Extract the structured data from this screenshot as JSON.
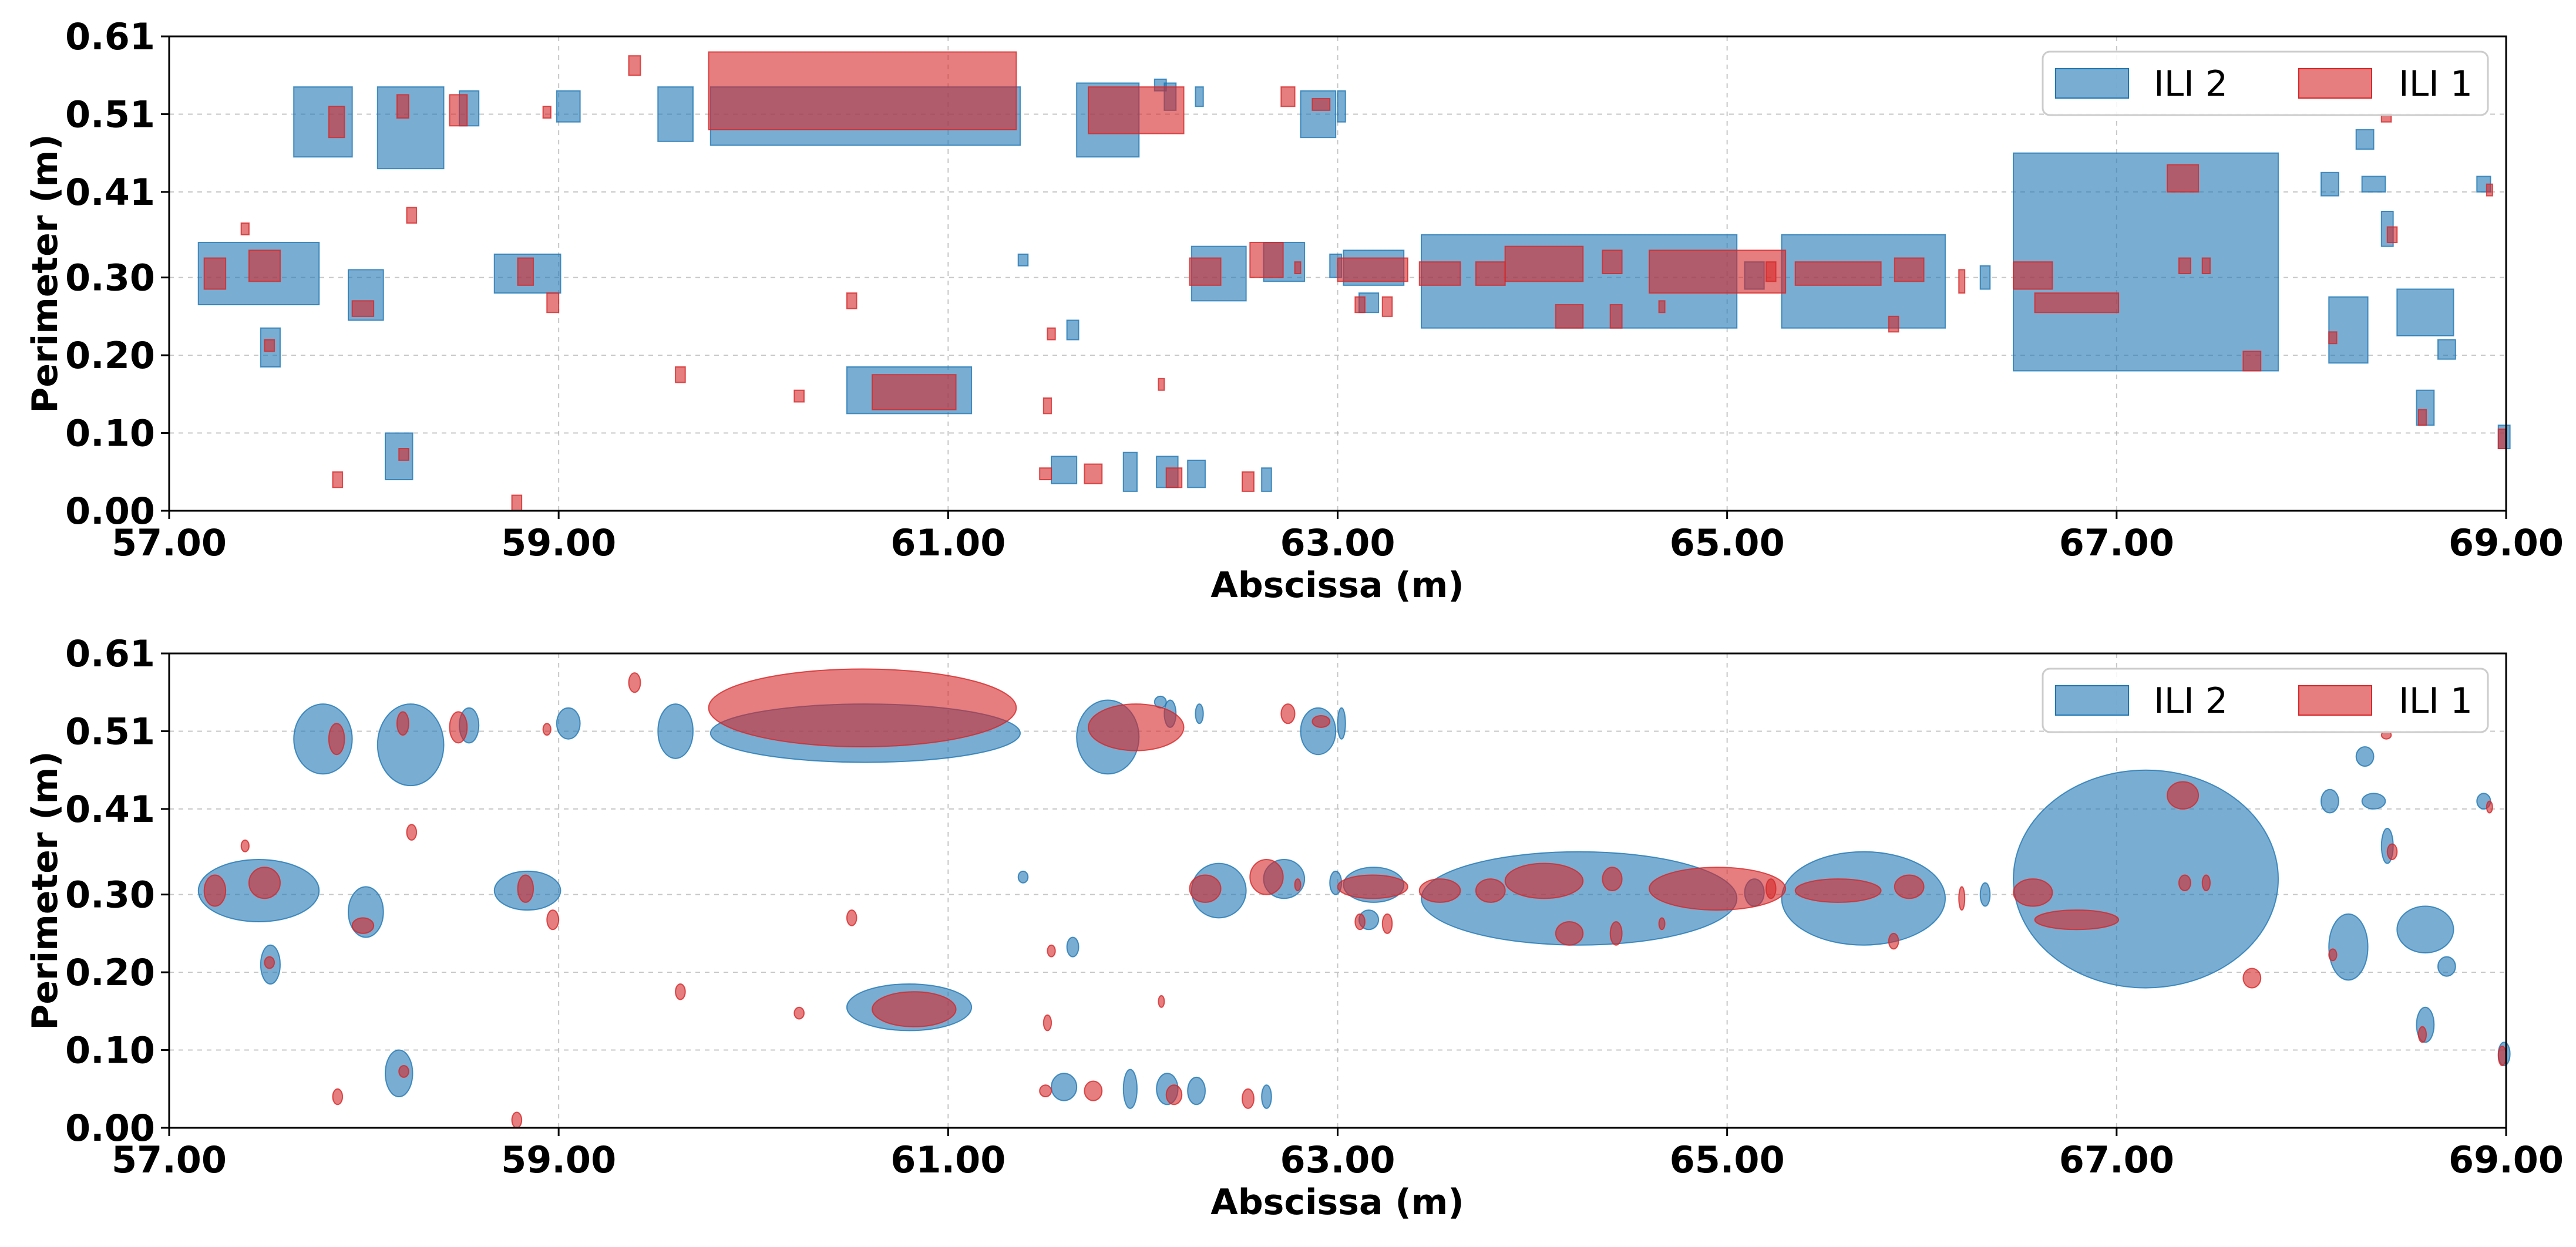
{
  "chart_data": [
    {
      "type": "rectangles",
      "xlabel": "Abscissa (m)",
      "ylabel": "Perimeter (m)",
      "xlim": [
        57.0,
        69.0
      ],
      "ylim": [
        0.0,
        0.61
      ],
      "xticks": [
        57,
        59,
        61,
        63,
        65,
        67,
        69
      ],
      "xtick_labels": [
        "57.00",
        "59.00",
        "61.00",
        "63.00",
        "65.00",
        "67.00",
        "69.00"
      ],
      "yticks": [
        0,
        0.1,
        0.2,
        0.3,
        0.41,
        0.51,
        0.61
      ],
      "ytick_labels": [
        "0.00",
        "0.10",
        "0.20",
        "0.30",
        "0.41",
        "0.51",
        "0.61"
      ],
      "grid": true,
      "legend_position": "top-right",
      "legend": [
        {
          "label": "ILI 2",
          "color": "#1f77b4"
        },
        {
          "label": "ILI 1",
          "color": "#d62728"
        }
      ]
    },
    {
      "type": "ellipses",
      "xlabel": "Abscissa (m)",
      "ylabel": "Perimeter (m)",
      "xlim": [
        57.0,
        69.0
      ],
      "ylim": [
        0.0,
        0.61
      ],
      "xticks": [
        57,
        59,
        61,
        63,
        65,
        67,
        69
      ],
      "xtick_labels": [
        "57.00",
        "59.00",
        "61.00",
        "63.00",
        "65.00",
        "67.00",
        "69.00"
      ],
      "yticks": [
        0,
        0.1,
        0.2,
        0.3,
        0.41,
        0.51,
        0.61
      ],
      "ytick_labels": [
        "0.00",
        "0.10",
        "0.20",
        "0.30",
        "0.41",
        "0.51",
        "0.61"
      ],
      "grid": true,
      "legend_position": "top-right",
      "legend": [
        {
          "label": "ILI 2",
          "color": "#1f77b4"
        },
        {
          "label": "ILI 1",
          "color": "#d62728"
        }
      ]
    }
  ],
  "series": {
    "ILI 2": {
      "color": "#1f77b4",
      "defects": [
        [
          57.15,
          57.77,
          0.265,
          0.345
        ],
        [
          57.47,
          57.57,
          0.185,
          0.235
        ],
        [
          57.64,
          57.94,
          0.455,
          0.545
        ],
        [
          57.92,
          58.1,
          0.245,
          0.31
        ],
        [
          58.07,
          58.41,
          0.44,
          0.545
        ],
        [
          58.11,
          58.25,
          0.04,
          0.1
        ],
        [
          58.49,
          58.59,
          0.495,
          0.54
        ],
        [
          58.67,
          59.01,
          0.28,
          0.33
        ],
        [
          58.99,
          59.11,
          0.5,
          0.54
        ],
        [
          59.51,
          59.69,
          0.475,
          0.545
        ],
        [
          59.78,
          61.37,
          0.47,
          0.545
        ],
        [
          60.48,
          61.12,
          0.125,
          0.185
        ],
        [
          61.36,
          61.41,
          0.315,
          0.33
        ],
        [
          61.53,
          61.66,
          0.035,
          0.07
        ],
        [
          61.61,
          61.67,
          0.22,
          0.245
        ],
        [
          61.66,
          61.98,
          0.455,
          0.55
        ],
        [
          61.9,
          61.97,
          0.025,
          0.075
        ],
        [
          62.06,
          62.12,
          0.54,
          0.555
        ],
        [
          62.07,
          62.18,
          0.03,
          0.07
        ],
        [
          62.11,
          62.17,
          0.515,
          0.55
        ],
        [
          62.23,
          62.32,
          0.03,
          0.065
        ],
        [
          62.27,
          62.31,
          0.52,
          0.545
        ],
        [
          62.25,
          62.53,
          0.27,
          0.34
        ],
        [
          62.61,
          62.66,
          0.025,
          0.055
        ],
        [
          62.62,
          62.83,
          0.295,
          0.345
        ],
        [
          62.81,
          62.99,
          0.48,
          0.54
        ],
        [
          62.96,
          63.02,
          0.3,
          0.33
        ],
        [
          63.0,
          63.04,
          0.5,
          0.54
        ],
        [
          63.03,
          63.34,
          0.29,
          0.335
        ],
        [
          63.11,
          63.21,
          0.255,
          0.28
        ],
        [
          63.43,
          65.05,
          0.235,
          0.355
        ],
        [
          65.09,
          65.19,
          0.285,
          0.32
        ],
        [
          65.28,
          66.12,
          0.235,
          0.355
        ],
        [
          66.3,
          66.35,
          0.285,
          0.315
        ],
        [
          66.47,
          67.83,
          0.18,
          0.46
        ],
        [
          68.05,
          68.14,
          0.405,
          0.435
        ],
        [
          68.09,
          68.29,
          0.19,
          0.275
        ],
        [
          68.23,
          68.32,
          0.465,
          0.49
        ],
        [
          68.26,
          68.38,
          0.41,
          0.43
        ],
        [
          68.36,
          68.42,
          0.34,
          0.385
        ],
        [
          68.44,
          68.73,
          0.225,
          0.285
        ],
        [
          68.54,
          68.63,
          0.11,
          0.155
        ],
        [
          68.65,
          68.74,
          0.195,
          0.22
        ],
        [
          68.85,
          68.92,
          0.41,
          0.43
        ],
        [
          68.96,
          69.02,
          0.08,
          0.11
        ]
      ]
    },
    "ILI 1": {
      "color": "#d62728",
      "defects": [
        [
          57.18,
          57.29,
          0.285,
          0.325
        ],
        [
          57.37,
          57.41,
          0.355,
          0.37
        ],
        [
          57.41,
          57.57,
          0.295,
          0.335
        ],
        [
          57.49,
          57.54,
          0.205,
          0.22
        ],
        [
          57.84,
          57.89,
          0.03,
          0.05
        ],
        [
          57.82,
          57.9,
          0.48,
          0.52
        ],
        [
          57.94,
          58.05,
          0.25,
          0.27
        ],
        [
          58.18,
          58.23,
          0.065,
          0.08
        ],
        [
          58.17,
          58.23,
          0.505,
          0.535
        ],
        [
          58.22,
          58.27,
          0.37,
          0.39
        ],
        [
          58.44,
          58.53,
          0.495,
          0.535
        ],
        [
          58.76,
          58.81,
          0.0,
          0.02
        ],
        [
          58.79,
          58.87,
          0.29,
          0.325
        ],
        [
          58.92,
          58.96,
          0.505,
          0.52
        ],
        [
          58.94,
          59.0,
          0.255,
          0.28
        ],
        [
          59.36,
          59.42,
          0.56,
          0.585
        ],
        [
          59.6,
          59.65,
          0.165,
          0.185
        ],
        [
          59.77,
          61.35,
          0.49,
          0.59
        ],
        [
          60.21,
          60.26,
          0.14,
          0.155
        ],
        [
          60.48,
          60.53,
          0.26,
          0.28
        ],
        [
          60.61,
          61.04,
          0.13,
          0.175
        ],
        [
          61.47,
          61.53,
          0.04,
          0.055
        ],
        [
          61.49,
          61.53,
          0.125,
          0.145
        ],
        [
          61.51,
          61.55,
          0.22,
          0.235
        ],
        [
          61.7,
          61.79,
          0.035,
          0.06
        ],
        [
          61.72,
          62.21,
          0.485,
          0.545
        ],
        [
          62.08,
          62.11,
          0.155,
          0.17
        ],
        [
          62.12,
          62.2,
          0.03,
          0.055
        ],
        [
          62.24,
          62.4,
          0.29,
          0.325
        ],
        [
          62.51,
          62.57,
          0.025,
          0.05
        ],
        [
          62.55,
          62.72,
          0.3,
          0.345
        ],
        [
          62.71,
          62.78,
          0.52,
          0.545
        ],
        [
          62.78,
          62.81,
          0.305,
          0.32
        ],
        [
          62.87,
          62.96,
          0.515,
          0.53
        ],
        [
          63.0,
          63.36,
          0.295,
          0.325
        ],
        [
          63.09,
          63.14,
          0.255,
          0.275
        ],
        [
          63.23,
          63.28,
          0.25,
          0.275
        ],
        [
          63.42,
          63.63,
          0.29,
          0.32
        ],
        [
          63.71,
          63.86,
          0.29,
          0.32
        ],
        [
          63.86,
          64.26,
          0.295,
          0.34
        ],
        [
          64.12,
          64.26,
          0.235,
          0.265
        ],
        [
          64.36,
          64.46,
          0.305,
          0.335
        ],
        [
          64.4,
          64.46,
          0.235,
          0.265
        ],
        [
          64.6,
          65.3,
          0.28,
          0.335
        ],
        [
          64.65,
          64.68,
          0.255,
          0.27
        ],
        [
          65.2,
          65.25,
          0.295,
          0.32
        ],
        [
          65.35,
          65.79,
          0.29,
          0.32
        ],
        [
          65.83,
          65.88,
          0.23,
          0.25
        ],
        [
          65.86,
          66.01,
          0.295,
          0.325
        ],
        [
          66.19,
          66.22,
          0.28,
          0.31
        ],
        [
          66.47,
          66.67,
          0.285,
          0.32
        ],
        [
          66.58,
          67.01,
          0.255,
          0.28
        ],
        [
          67.26,
          67.42,
          0.41,
          0.445
        ],
        [
          67.32,
          67.38,
          0.305,
          0.325
        ],
        [
          67.44,
          67.48,
          0.305,
          0.325
        ],
        [
          67.65,
          67.74,
          0.18,
          0.205
        ],
        [
          68.09,
          68.13,
          0.215,
          0.23
        ],
        [
          68.36,
          68.41,
          0.5,
          0.51
        ],
        [
          68.39,
          68.44,
          0.345,
          0.365
        ],
        [
          68.55,
          68.59,
          0.11,
          0.13
        ],
        [
          68.9,
          68.93,
          0.405,
          0.42
        ],
        [
          68.96,
          69.0,
          0.08,
          0.105
        ]
      ]
    }
  },
  "colors": {
    "ILI 2": "#1f77b4",
    "ILI 1": "#d62728",
    "grid": "#b0b0b0",
    "axes": "#000000"
  }
}
